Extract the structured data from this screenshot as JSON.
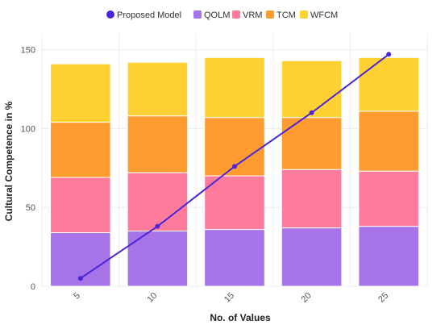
{
  "chart_data": {
    "type": "bar",
    "stacked": true,
    "title": "",
    "xlabel": "No. of Values",
    "ylabel": "Cultural Competence in %",
    "categories": [
      "5",
      "10",
      "15",
      "20",
      "25"
    ],
    "ylim": [
      0,
      160
    ],
    "yticks": [
      0,
      50,
      100,
      150
    ],
    "grid": true,
    "legend_position": "top",
    "series": [
      {
        "name": "QOLM",
        "color": "#a673e8",
        "values": [
          34,
          35,
          36,
          37,
          38
        ]
      },
      {
        "name": "VRM",
        "color": "#ff7b9c",
        "values": [
          35,
          37,
          34,
          37,
          35
        ]
      },
      {
        "name": "TCM",
        "color": "#ff9c30",
        "values": [
          35,
          36,
          37,
          33,
          38
        ]
      },
      {
        "name": "WFCM",
        "color": "#ffd133",
        "values": [
          37,
          34,
          38,
          36,
          34
        ]
      }
    ],
    "line_series": {
      "name": "Proposed Model",
      "color": "#4b26d6",
      "values": [
        5,
        38,
        76,
        110,
        147
      ]
    }
  }
}
